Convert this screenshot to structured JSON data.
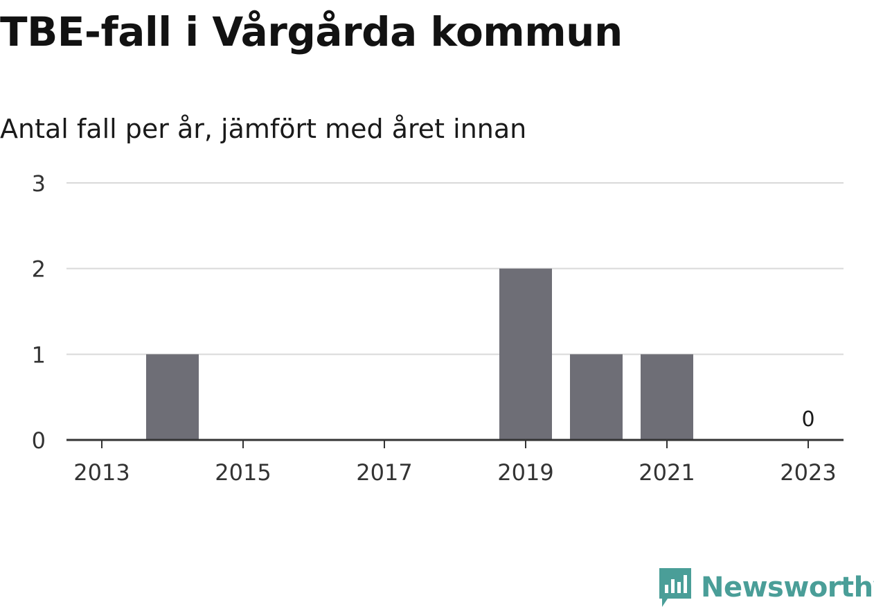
{
  "title": "TBE-fall i Vårgårda kommun",
  "subtitle": "Antal fall per år, jämfört med året innan",
  "logo": {
    "text": "Newsworthy",
    "icon": "bar-chart-badge-icon",
    "color": "#4a9e98"
  },
  "colors": {
    "bar": "#6e6e76",
    "grid": "#d9d9d9",
    "axis": "#333333"
  },
  "chart_data": {
    "type": "bar",
    "categories": [
      "2013",
      "2014",
      "2015",
      "2016",
      "2017",
      "2018",
      "2019",
      "2020",
      "2021",
      "2022",
      "2023"
    ],
    "values": [
      0,
      1,
      0,
      0,
      0,
      0,
      2,
      1,
      1,
      0,
      0
    ],
    "x_tick_labels": [
      "2013",
      "2015",
      "2017",
      "2019",
      "2021",
      "2023"
    ],
    "y_ticks": [
      0,
      1,
      2,
      3
    ],
    "ylim": [
      0,
      3
    ],
    "data_labels": [
      {
        "category": "2023",
        "text": "0"
      }
    ],
    "grid": true
  }
}
